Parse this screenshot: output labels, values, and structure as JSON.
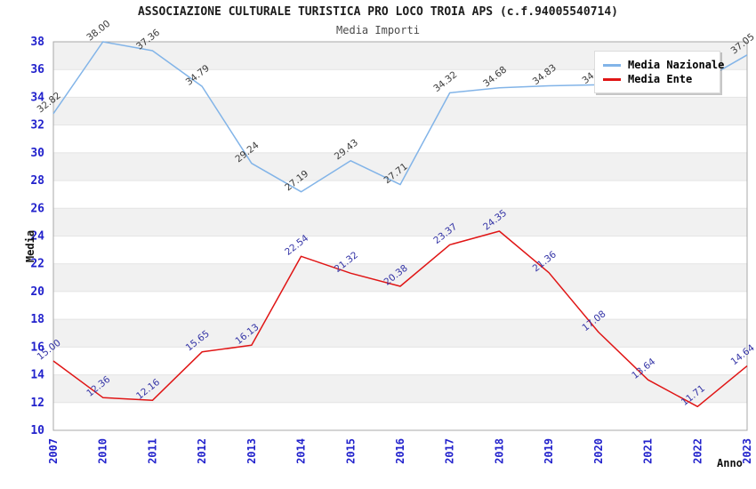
{
  "title": "ASSOCIAZIONE CULTURALE TURISTICA PRO LOCO TROIA APS (c.f.94005540714)",
  "subtitle": "Media Importi",
  "legend": {
    "items": [
      {
        "label": "Media Nazionale",
        "color": "#82b4e8"
      },
      {
        "label": "Media Ente",
        "color": "#e01515"
      }
    ]
  },
  "axes": {
    "y_title": "Media",
    "x_title": "Anno",
    "tick_color": "#2222cc",
    "y_ticks": [
      10,
      12,
      14,
      16,
      18,
      20,
      22,
      24,
      26,
      28,
      30,
      32,
      34,
      36,
      38
    ]
  },
  "chart_data": {
    "type": "line",
    "categories": [
      "2007",
      "2010",
      "2011",
      "2012",
      "2013",
      "2014",
      "2015",
      "2016",
      "2017",
      "2018",
      "2019",
      "2020",
      "2021",
      "2022",
      "2023"
    ],
    "series": [
      {
        "name": "Media Nazionale",
        "color": "#82b4e8",
        "label_color": "#3b3b3b",
        "values": [
          32.82,
          38.0,
          37.36,
          34.79,
          29.24,
          27.19,
          29.43,
          27.71,
          34.32,
          34.68,
          34.83,
          34.9,
          34.95,
          35.0,
          37.05
        ],
        "labels": [
          "32.82",
          "38.00",
          "37.36",
          "34.79",
          "29.24",
          "27.19",
          "29.43",
          "27.71",
          "34.32",
          "34.68",
          "34.83",
          "34.90",
          null,
          null,
          "37.05"
        ]
      },
      {
        "name": "Media Ente",
        "color": "#e01515",
        "label_color": "#3434a6",
        "values": [
          15.0,
          12.36,
          12.16,
          15.65,
          16.13,
          22.54,
          21.32,
          20.38,
          23.37,
          24.35,
          21.36,
          17.08,
          13.64,
          11.71,
          14.64
        ],
        "labels": [
          "15.00",
          "12.36",
          "12.16",
          "15.65",
          "16.13",
          "22.54",
          "21.32",
          "20.38",
          "23.37",
          "24.35",
          "21.36",
          "17.08",
          "13.64",
          "11.71",
          "14.64"
        ]
      }
    ],
    "ylim": [
      10,
      38
    ],
    "band_step": 2,
    "band_colors": [
      "#f1f1f1",
      "#ffffff"
    ],
    "band_edge_color": "#e4e4e4",
    "plot_border_color": "#a8a8a8",
    "grid": "horizontal-bands",
    "legend_position": "top-right"
  }
}
